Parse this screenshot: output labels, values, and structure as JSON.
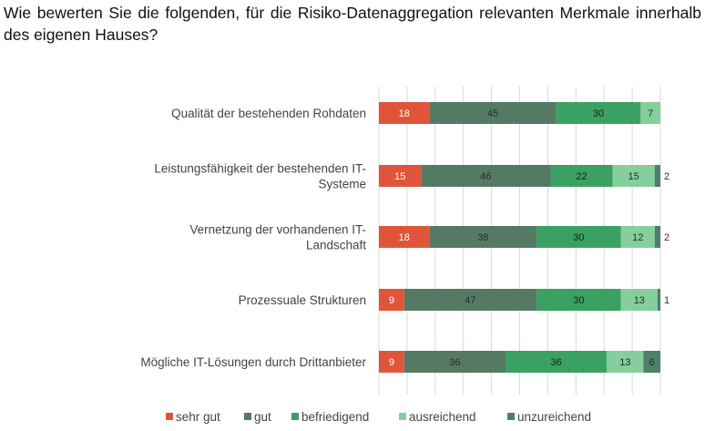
{
  "title": "Wie bewerten Sie die folgenden, für die Risiko-Datenaggregation relevanten Merkmale innerhalb des eigenen Hauses?",
  "chart_data": {
    "type": "bar",
    "orientation": "horizontal",
    "stacked": true,
    "percent_stacked": true,
    "categories": [
      "Qualität der bestehenden Rohdaten",
      "Leistungsfähigkeit der bestehenden IT-Systeme",
      "Vernetzung der vorhandenen IT-Landschaft",
      "Prozessuale Strukturen",
      "Mögliche IT-Lösungen durch Drittanbieter"
    ],
    "category_lines": [
      [
        "Qualität der bestehenden Rohdaten"
      ],
      [
        "Leistungsfähigkeit der bestehenden IT-",
        "Systeme"
      ],
      [
        "Vernetzung der vorhandenen IT-",
        "Landschaft"
      ],
      [
        "Prozessuale Strukturen"
      ],
      [
        "Mögliche IT-Lösungen durch Drittanbieter"
      ]
    ],
    "series": [
      {
        "name": "sehr gut",
        "color": "#e0553a",
        "label_color": "#ffffff",
        "values": [
          18,
          15,
          18,
          9,
          9
        ]
      },
      {
        "name": "gut",
        "color": "#557a64",
        "label_color": "#2b2b2b",
        "values": [
          45,
          46,
          38,
          47,
          36
        ]
      },
      {
        "name": "befriedigend",
        "color": "#3ba162",
        "label_color": "#1e1e1e",
        "values": [
          30,
          22,
          30,
          30,
          36
        ]
      },
      {
        "name": "ausreichend",
        "color": "#84cf9b",
        "label_color": "#2b2b2b",
        "values": [
          7,
          15,
          12,
          13,
          13
        ]
      },
      {
        "name": "unzureichend",
        "color": "#4e7f67",
        "label_color": "#2b2b2b",
        "values": [
          0,
          2,
          2,
          1,
          6
        ]
      }
    ],
    "xlim": [
      0,
      100
    ],
    "grid": true,
    "legend": "bottom"
  }
}
